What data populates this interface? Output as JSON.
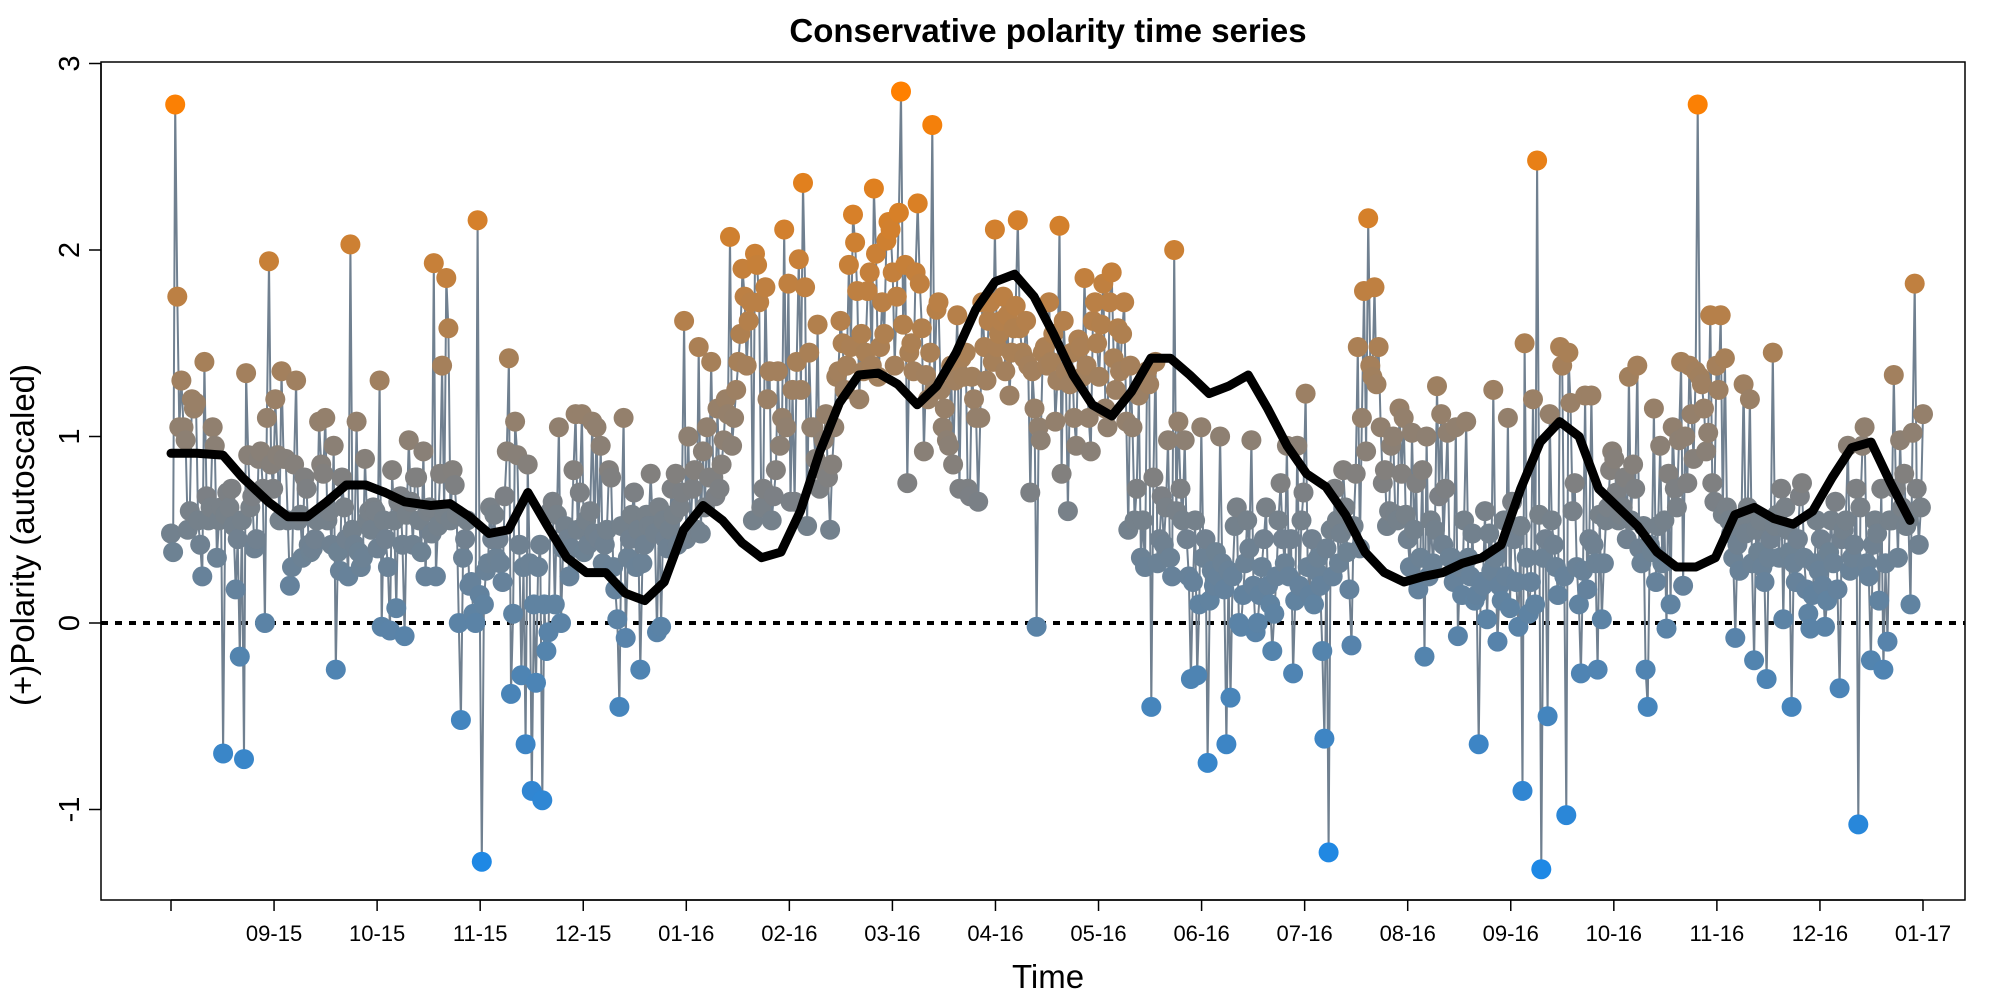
{
  "chart_data": {
    "type": "line",
    "title": "Conservative polarity time series",
    "xlabel": "Time",
    "ylabel": "(+)Polarity (autoscaled)",
    "x_tick_labels": [
      "09-15",
      "10-15",
      "11-15",
      "12-15",
      "01-16",
      "02-16",
      "03-16",
      "04-16",
      "05-16",
      "06-16",
      "07-16",
      "08-16",
      "09-16",
      "10-16",
      "11-16",
      "12-16",
      "01-17"
    ],
    "y_ticks": [
      -1,
      0,
      1,
      2,
      3
    ],
    "ylim": [
      -1.5,
      3.0
    ],
    "xlim": [
      0,
      540
    ],
    "reference_line": {
      "y": 0,
      "style": "dotted"
    },
    "color_scale": {
      "low": "#1e88e5",
      "mid": "#808080",
      "high": "#ff8000",
      "range": [
        -1.3,
        2.85
      ]
    },
    "line_color": "#708090",
    "smooth_color": "#000000",
    "series": [
      {
        "type": "line-points",
        "values": [
          0.48,
          0.38,
          2.78,
          1.75,
          1.05,
          1.3,
          1.05,
          0.98,
          0.5,
          0.6,
          1.2,
          1.15,
          1.18,
          0.55,
          0.42,
          0.25,
          1.4,
          0.68,
          0.55,
          0.62,
          1.05,
          0.95,
          0.35,
          0.55,
          0.62,
          -0.7,
          0.58,
          0.7,
          0.62,
          0.72,
          0.52,
          0.18,
          0.45,
          -0.18,
          0.55,
          -0.73,
          1.34,
          0.9,
          0.62,
          0.68,
          0.4,
          0.45,
          0.88,
          0.92,
          0.72,
          0.0,
          1.1,
          1.94,
          0.85,
          0.72,
          1.2,
          0.9,
          0.55,
          1.35,
          0.88,
          0.88,
          0.55,
          0.2,
          0.3,
          0.85,
          1.3,
          0.55,
          0.58,
          0.35,
          0.78,
          0.72,
          0.42,
          0.38,
          0.4,
          0.45,
          0.55,
          1.08,
          0.85,
          0.8,
          1.1,
          0.55,
          0.6,
          0.42,
          0.95,
          -0.25,
          0.38,
          0.28,
          0.78,
          0.62,
          0.45,
          0.25,
          2.03,
          0.5,
          0.42,
          1.08,
          0.38,
          0.3,
          0.35,
          0.88,
          0.55,
          0.6,
          0.5,
          0.62,
          0.6,
          0.4,
          1.3,
          -0.02,
          0.55,
          0.45,
          0.3,
          -0.04,
          0.82,
          0.55,
          0.08,
          0.65,
          0.68,
          0.42,
          -0.07,
          0.58,
          0.98,
          0.65,
          0.42,
          0.78,
          0.78,
          0.55,
          0.38,
          0.92,
          0.25,
          0.6,
          0.62,
          0.48,
          1.93,
          0.25,
          0.52,
          0.8,
          1.38,
          0.58,
          1.85,
          1.58,
          0.55,
          0.82,
          0.74,
          0.58,
          0.0,
          -0.52,
          0.35,
          0.45,
          0.55,
          0.2,
          0.22,
          0.05,
          0.0,
          2.16,
          0.15,
          -1.28,
          0.1,
          0.28,
          0.32,
          0.62,
          0.45,
          0.58,
          0.35,
          0.45,
          0.32,
          0.22,
          0.68,
          0.92,
          1.42,
          -0.38,
          0.05,
          1.08,
          0.9,
          0.42,
          -0.28,
          0.3,
          -0.65,
          0.85,
          0.32,
          -0.9,
          0.1,
          -0.32,
          0.3,
          0.42,
          -0.95,
          0.1,
          -0.15,
          -0.05,
          0.6,
          0.65,
          0.1,
          0.58,
          1.05,
          0.0,
          0.4,
          0.52,
          0.45,
          0.25,
          0.4,
          0.82,
          1.12,
          0.5,
          0.7,
          1.12,
          0.38,
          0.55,
          0.42,
          0.6,
          1.08,
          0.48,
          1.05,
          0.45,
          0.95,
          0.32,
          0.42,
          0.5,
          0.82,
          0.78,
          0.3,
          0.18,
          0.02,
          -0.45,
          0.52,
          1.1,
          -0.08,
          0.35,
          0.45,
          0.58,
          0.7,
          0.3,
          0.5,
          -0.25,
          0.32,
          0.42,
          0.58,
          0.52,
          0.8,
          0.52,
          0.48,
          -0.05,
          0.62,
          -0.02,
          0.55,
          0.45,
          0.4,
          0.5,
          0.72,
          0.58,
          0.8,
          0.42,
          0.62,
          0.7,
          1.62,
          0.45,
          1.0,
          0.48,
          0.72,
          0.82,
          0.5,
          1.48,
          0.48,
          0.92,
          0.62,
          1.05,
          0.78,
          1.4,
          0.78,
          0.68,
          1.15,
          0.72,
          0.85,
          0.98,
          1.2,
          1.12,
          2.07,
          0.95,
          1.1,
          1.25,
          1.4,
          1.55,
          1.9,
          1.75,
          1.38,
          1.62,
          1.72,
          0.55,
          1.98,
          1.92,
          1.72,
          0.62,
          0.72,
          1.8,
          1.2,
          1.35,
          0.55,
          0.68,
          0.82,
          1.35,
          0.95,
          1.1,
          2.11,
          1.05,
          1.82,
          0.65,
          1.25,
          0.65,
          1.4,
          1.95,
          1.25,
          2.36,
          1.8,
          0.52,
          1.45,
          1.05,
          1.05,
          0.88,
          1.6,
          0.72,
          0.82,
          0.98,
          1.12,
          0.78,
          0.5,
          0.85,
          1.05,
          1.32,
          1.35,
          1.62,
          1.5,
          1.25,
          1.38,
          1.92,
          1.48,
          2.19,
          2.04,
          1.78,
          1.2,
          1.55,
          1.35,
          1.45,
          1.78,
          1.88,
          1.38,
          2.33,
          1.98,
          1.32,
          1.48,
          1.72,
          1.55,
          2.05,
          2.15,
          2.11,
          1.88,
          1.38,
          1.75,
          2.2,
          2.85,
          1.6,
          1.92,
          0.75,
          1.45,
          1.5,
          1.35,
          1.88,
          2.25,
          1.82,
          1.58,
          0.92,
          1.33,
          1.2,
          1.45,
          2.67,
          1.25,
          1.68,
          1.72,
          1.25,
          1.05,
          1.15,
          0.98,
          0.95,
          1.38,
          0.85,
          1.3,
          1.65,
          0.72,
          1.42,
          1.32,
          1.45,
          0.72,
          0.68,
          1.32,
          1.2,
          1.1,
          0.65,
          1.1,
          1.72,
          1.48,
          1.3,
          1.62,
          1.72,
          1.4,
          2.11,
          1.48,
          1.55,
          1.62,
          1.75,
          1.35,
          1.65,
          1.22,
          1.45,
          1.58,
          1.7,
          2.16,
          1.58,
          1.45,
          1.42,
          1.62,
          1.38,
          0.7,
          1.35,
          1.15,
          -0.02,
          1.05,
          0.98,
          1.45,
          1.48,
          1.38,
          1.72,
          1.4,
          1.55,
          1.08,
          1.3,
          2.13,
          0.8,
          1.62,
          1.35,
          0.6,
          1.28,
          1.45,
          1.1,
          0.95,
          1.52,
          1.48,
          1.32,
          1.85,
          1.38,
          1.1,
          0.92,
          1.62,
          1.72,
          1.5,
          1.32,
          1.6,
          1.82,
          1.15,
          1.05,
          1.72,
          1.88,
          1.42,
          1.25,
          1.58,
          1.35,
          1.55,
          1.72,
          1.08,
          0.5,
          1.38,
          1.05,
          0.55,
          0.72,
          1.22,
          0.35,
          0.55,
          0.3,
          1.35,
          1.28,
          -0.45,
          0.78,
          1.4,
          0.32,
          0.45,
          0.68,
          0.42,
          0.62,
          0.98,
          0.35,
          0.25,
          2.0,
          0.6,
          1.08,
          0.72,
          0.55,
          0.98,
          0.45,
          0.25,
          -0.3,
          0.22,
          0.55,
          -0.28,
          0.1,
          1.05,
          0.35,
          0.45,
          -0.75,
          0.12,
          0.28,
          0.2,
          0.38,
          0.25,
          1.0,
          0.32,
          0.18,
          -0.65,
          0.28,
          -0.4,
          0.25,
          0.52,
          0.62,
          0.0,
          -0.02,
          0.15,
          0.32,
          0.55,
          0.4,
          0.98,
          0.2,
          -0.05,
          0.0,
          0.15,
          0.3,
          0.45,
          0.62,
          0.2,
          0.1,
          -0.15,
          0.05,
          0.25,
          0.55,
          0.75,
          0.45,
          0.32,
          0.95,
          0.25,
          0.45,
          -0.27,
          0.12,
          0.95,
          0.2,
          0.55,
          0.7,
          1.23,
          0.3,
          0.15,
          0.45,
          0.1,
          0.28,
          0.35,
          0.2,
          -0.15,
          -0.62,
          0.4,
          -1.23,
          0.5,
          0.25,
          0.72,
          0.55,
          0.32,
          0.48,
          0.82,
          0.62,
          0.38,
          0.18,
          -0.12,
          0.52,
          0.8,
          1.48,
          0.4,
          1.1,
          1.78,
          0.92,
          2.17,
          1.38,
          1.32,
          1.8,
          1.28,
          1.48,
          1.05,
          0.75,
          0.82,
          0.52,
          0.6,
          0.95,
          1.0,
          0.58,
          0.55,
          1.15,
          0.8,
          1.1,
          0.58,
          0.45,
          0.3,
          1.02,
          0.5,
          0.75,
          0.18,
          0.35,
          0.82,
          -0.18,
          1.0,
          0.25,
          0.55,
          0.32,
          0.5,
          1.27,
          0.68,
          1.12,
          0.42,
          0.72,
          1.02,
          0.35,
          0.35,
          0.22,
          1.05,
          -0.07,
          0.3,
          0.15,
          0.55,
          1.08,
          0.35,
          0.25,
          0.48,
          0.12,
          0.15,
          -0.65,
          0.22,
          0.2,
          0.6,
          0.02,
          0.48,
          0.28,
          1.25,
          0.35,
          -0.1,
          0.2,
          0.12,
          0.55,
          0.25,
          1.1,
          0.08,
          0.65,
          0.45,
          0.22,
          -0.02,
          0.52,
          -0.9,
          1.5,
          0.35,
          0.05,
          0.22,
          1.2,
          0.1,
          2.48,
          0.58,
          -1.32,
          0.35,
          0.45,
          -0.5,
          1.12,
          0.55,
          0.42,
          0.3,
          0.15,
          1.48,
          1.38,
          0.25,
          -1.03,
          1.45,
          1.18,
          0.6,
          0.75,
          0.3,
          0.1,
          -0.27,
          0.28,
          1.22,
          0.18,
          0.45,
          1.22,
          0.42,
          0.32,
          -0.25,
          0.58,
          0.02,
          0.32,
          0.55,
          0.62,
          0.82,
          0.92,
          0.88,
          0.7,
          0.55,
          0.58,
          0.62,
          0.78,
          0.45,
          1.32,
          0.55,
          0.85,
          0.72,
          1.38,
          0.4,
          0.32,
          0.52,
          -0.25,
          -0.45,
          0.42,
          0.38,
          1.15,
          0.22,
          0.52,
          0.95,
          0.32,
          0.55,
          -0.03,
          0.8,
          0.1,
          1.05,
          0.72,
          0.62,
          0.98,
          1.4,
          0.2,
          1.0,
          0.75,
          1.38,
          1.12,
          0.88,
          1.35,
          2.78,
          1.32,
          1.28,
          1.15,
          0.92,
          1.02,
          1.65,
          0.75,
          0.65,
          1.38,
          1.25,
          1.65,
          0.58,
          1.42,
          0.62,
          0.55,
          0.48,
          0.35,
          -0.08,
          0.42,
          0.28,
          0.55,
          1.28,
          0.48,
          0.62,
          1.2,
          0.32,
          -0.2,
          0.5,
          0.38,
          0.55,
          0.3,
          0.22,
          -0.3,
          0.35,
          0.45,
          1.45,
          0.52,
          0.58,
          0.35,
          0.72,
          0.02,
          0.62,
          0.5,
          0.38,
          -0.45,
          0.32,
          0.22,
          0.45,
          0.68,
          0.75,
          0.35,
          0.18,
          0.05,
          -0.03,
          0.15,
          0.32,
          0.55,
          0.28,
          0.45,
          0.2,
          -0.02,
          0.12,
          0.38,
          0.55,
          0.32,
          0.65,
          0.18,
          -0.35,
          0.45,
          0.5,
          0.55,
          0.95,
          0.28,
          0.35,
          0.42,
          0.72,
          -1.08,
          0.62,
          0.95,
          1.05,
          0.32,
          0.25,
          -0.2,
          0.42,
          0.55,
          0.48,
          0.12,
          0.72,
          -0.25,
          0.32,
          -0.1,
          0.55,
          0.55,
          1.33,
          0.72,
          0.35,
          0.98,
          0.62,
          0.8,
          0.52,
          0.55,
          0.1,
          1.02,
          1.82,
          0.72,
          0.42,
          0.62,
          1.12
        ]
      },
      {
        "type": "smooth",
        "x_days": [
          0,
          8,
          16,
          22,
          30,
          36,
          42,
          48,
          54,
          60,
          66,
          72,
          80,
          86,
          92,
          98,
          104,
          110,
          116,
          122,
          128,
          134,
          140,
          146,
          152,
          158,
          164,
          170,
          176,
          182,
          188,
          194,
          200,
          206,
          212,
          218,
          224,
          230,
          236,
          242,
          248,
          254,
          260,
          266,
          272,
          278,
          284,
          290,
          296,
          302,
          308,
          314,
          320,
          326,
          332,
          338,
          344,
          350,
          356,
          362,
          368,
          374,
          380,
          386,
          392,
          398,
          404,
          410,
          416,
          422,
          428,
          434,
          440,
          446,
          452,
          458,
          464,
          470,
          476,
          482,
          488,
          494,
          500,
          506,
          512,
          518,
          524,
          530,
          536
        ],
        "values": [
          0.91,
          0.91,
          0.9,
          0.78,
          0.65,
          0.57,
          0.57,
          0.65,
          0.74,
          0.74,
          0.7,
          0.65,
          0.63,
          0.64,
          0.57,
          0.48,
          0.5,
          0.7,
          0.52,
          0.35,
          0.27,
          0.27,
          0.16,
          0.12,
          0.22,
          0.5,
          0.63,
          0.55,
          0.43,
          0.35,
          0.38,
          0.6,
          0.92,
          1.18,
          1.33,
          1.34,
          1.28,
          1.17,
          1.27,
          1.45,
          1.68,
          1.83,
          1.87,
          1.75,
          1.55,
          1.33,
          1.17,
          1.11,
          1.24,
          1.42,
          1.42,
          1.33,
          1.23,
          1.27,
          1.33,
          1.15,
          0.95,
          0.8,
          0.73,
          0.58,
          0.38,
          0.27,
          0.22,
          0.25,
          0.27,
          0.32,
          0.35,
          0.42,
          0.72,
          0.97,
          1.08,
          1.0,
          0.72,
          0.62,
          0.52,
          0.38,
          0.3,
          0.3,
          0.35,
          0.58,
          0.62,
          0.56,
          0.53,
          0.6,
          0.78,
          0.94,
          0.97,
          0.75,
          0.55
        ]
      }
    ]
  }
}
